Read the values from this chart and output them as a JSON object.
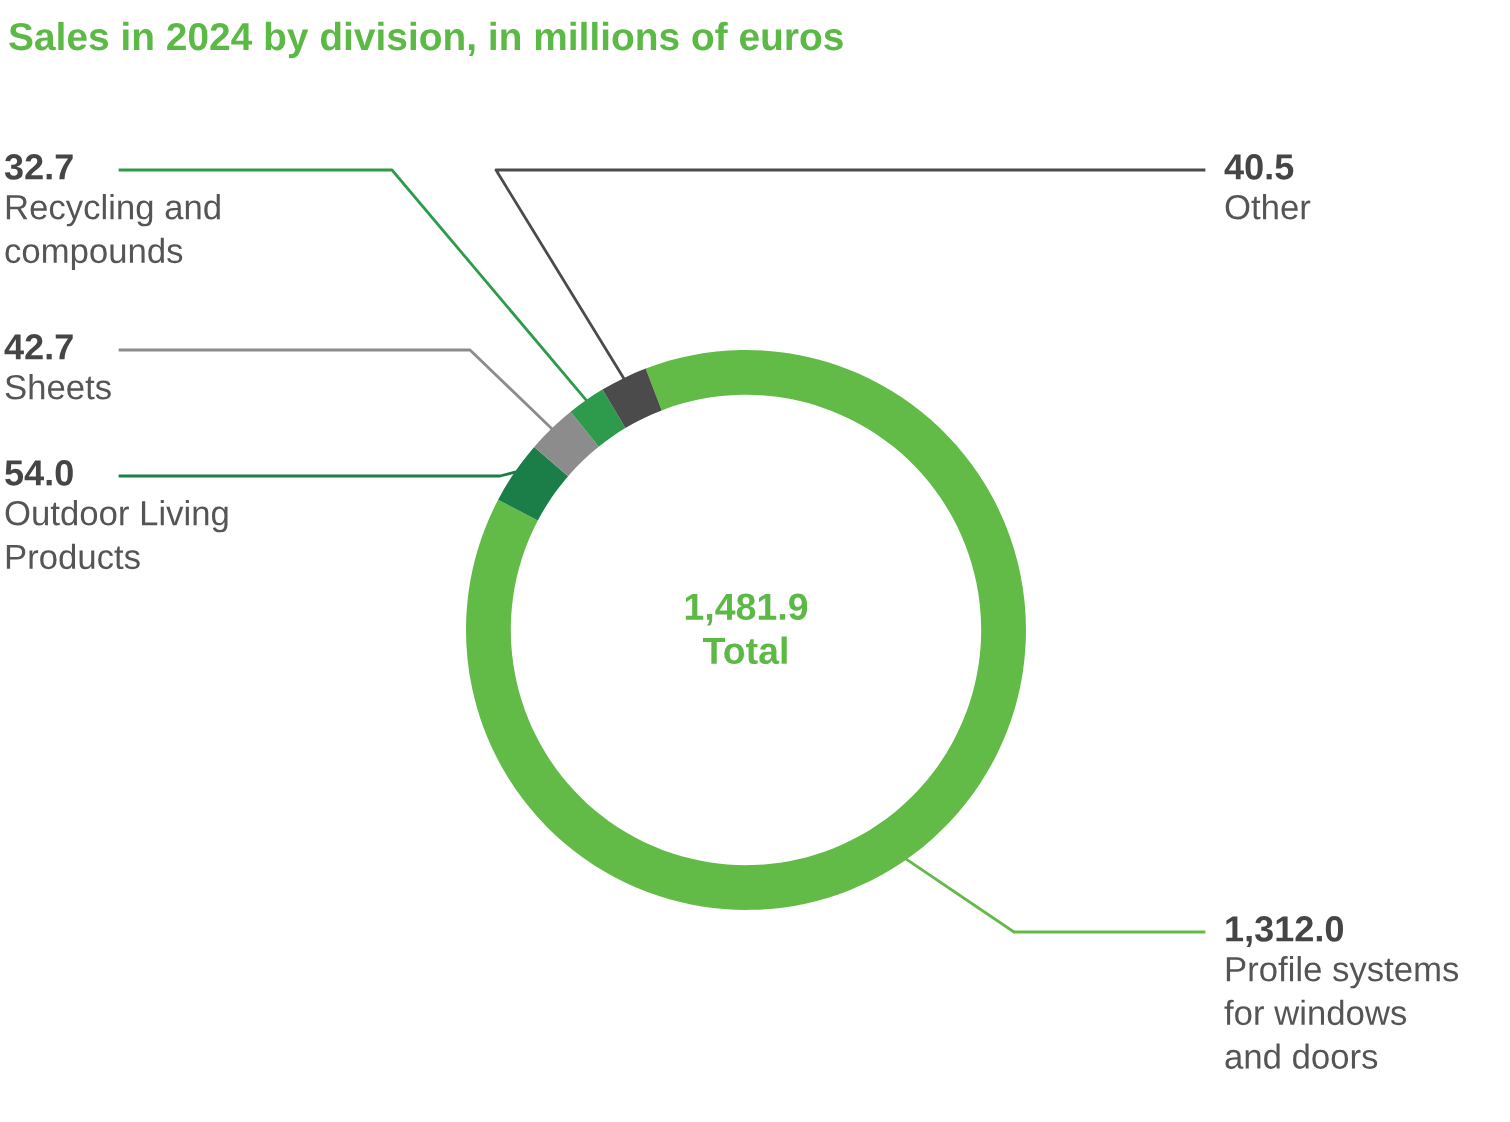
{
  "chart_data": {
    "type": "donut",
    "title": "Sales in 2024 by division, in millions of euros",
    "categories": [
      "Profile systems\nfor windows\nand doors",
      "Outdoor Living\nProducts",
      "Sheets",
      "Recycling and\ncompounds",
      "Other"
    ],
    "values": [
      1312.0,
      54.0,
      42.7,
      32.7,
      40.5
    ],
    "value_labels": [
      "1,312.0",
      "54.0",
      "42.7",
      "32.7",
      "40.5"
    ],
    "colors": [
      "#62bb46",
      "#1b7d47",
      "#8c8c8c",
      "#2e9a4c",
      "#4b4b4b"
    ],
    "annotations": [
      "1,481.9",
      "Total"
    ]
  }
}
